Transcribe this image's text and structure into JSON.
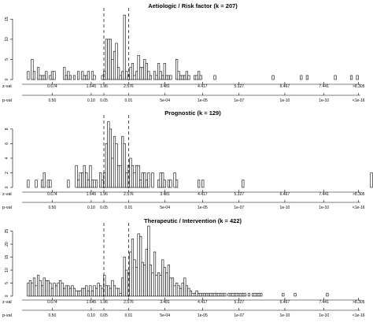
{
  "chart_data": [
    {
      "type": "bar",
      "title": "Aetiologic / Risk factor (k = 207)",
      "xlabel": "z-val",
      "secondary_axis_label": "p-val",
      "z_ticks": [
        "0.674",
        "1.645",
        "1.96",
        "2.576",
        "3.481",
        "4.417",
        "5.327",
        "6.467",
        "7.441",
        ">8.305"
      ],
      "p_ticks": [
        "0.50",
        "0.10",
        "0.05",
        "0.01",
        "5e-04",
        "1e-05",
        "1e-07",
        "1e-10",
        "1e-10",
        "<1e-16"
      ],
      "y_ticks": [
        "0",
        "5",
        "10",
        "15"
      ],
      "ylim": [
        0,
        17
      ],
      "dashed_lines_at_z": [
        1.96,
        2.576
      ],
      "bin_width": 0.05,
      "x_start": 0,
      "values": [
        0,
        2,
        0,
        5,
        2,
        0,
        3,
        1,
        1,
        1,
        2,
        0,
        1,
        2,
        2,
        0,
        0,
        0,
        0,
        3,
        1,
        2,
        1,
        0,
        1,
        0,
        2,
        0,
        2,
        1,
        1,
        2,
        0,
        2,
        1,
        0,
        0,
        0,
        1,
        2,
        10,
        10,
        10,
        5,
        7,
        9,
        3,
        1,
        2,
        16,
        2,
        1,
        3,
        4,
        1,
        2,
        6,
        3,
        3,
        5,
        4,
        2,
        1,
        0,
        2,
        1,
        4,
        2,
        1,
        4,
        1,
        1,
        1,
        0,
        0,
        5,
        2,
        1,
        1,
        1,
        2,
        1,
        0,
        0,
        1,
        1,
        2,
        1,
        0,
        0,
        0,
        0,
        0,
        0,
        1,
        0,
        0,
        0,
        0,
        0,
        0,
        0,
        0,
        0,
        0,
        0,
        0,
        0,
        0,
        0,
        0,
        0,
        0,
        0,
        0,
        0,
        0,
        0,
        0,
        0,
        0,
        0,
        0,
        1,
        0,
        0,
        0,
        0,
        0,
        0,
        0,
        0,
        0,
        0,
        0,
        0,
        0,
        1,
        0,
        0,
        1,
        0,
        0,
        0,
        0,
        0,
        0,
        0,
        0,
        0,
        0,
        0,
        0,
        0,
        1,
        0,
        0,
        0,
        0,
        0,
        0,
        0,
        1,
        0,
        0,
        1,
        0,
        0,
        0,
        0,
        0,
        0,
        0,
        0,
        0,
        0,
        0,
        0,
        0,
        0,
        15
      ]
    },
    {
      "type": "bar",
      "title": "Prognostic (k = 129)",
      "xlabel": "z-val",
      "secondary_axis_label": "p-val",
      "z_ticks": [
        "0.674",
        "1.645",
        "1.96",
        "2.576",
        "3.481",
        "4.417",
        "5.327",
        "6.467",
        "7.441",
        ">8.305"
      ],
      "p_ticks": [
        "0.50",
        "0.10",
        "0.05",
        "0.01",
        "5e-04",
        "1e-05",
        "1e-07",
        "1e-10",
        "1e-10",
        "<1e-16"
      ],
      "y_ticks": [
        "0",
        "2",
        "4",
        "6",
        "8"
      ],
      "ylim": [
        0,
        9.5
      ],
      "dashed_lines_at_z": [
        1.96,
        2.576
      ],
      "bin_width": 0.05,
      "x_start": 0,
      "values": [
        0,
        1,
        0,
        0,
        0,
        1,
        0,
        0,
        1,
        2,
        0,
        1,
        1,
        0,
        0,
        0,
        0,
        0,
        0,
        0,
        0,
        1,
        0,
        0,
        0,
        3,
        1,
        2,
        2,
        3,
        2,
        1,
        3,
        1,
        1,
        1,
        0,
        2,
        1,
        2,
        6,
        9,
        8,
        4,
        7,
        6,
        3,
        3,
        7,
        6,
        2,
        3,
        4,
        3,
        2,
        3,
        3,
        1,
        2,
        2,
        1,
        2,
        0,
        2,
        0,
        0,
        1,
        2,
        2,
        1,
        0,
        1,
        1,
        0,
        2,
        1,
        0,
        0,
        0,
        0,
        0,
        0,
        0,
        0,
        0,
        0,
        1,
        0,
        1,
        0,
        0,
        0,
        0,
        0,
        0,
        0,
        0,
        0,
        0,
        0,
        0,
        0,
        0,
        0,
        0,
        0,
        0,
        0,
        1,
        0,
        0,
        0,
        0,
        0,
        0,
        0,
        0,
        0,
        0,
        0,
        0,
        0,
        0,
        0,
        0,
        0,
        0,
        0,
        0,
        0,
        0,
        0,
        0,
        0,
        0,
        0,
        0,
        0,
        0,
        0,
        0,
        0,
        0,
        0,
        0,
        0,
        0,
        0,
        0,
        0,
        0,
        0,
        0,
        0,
        0,
        0,
        0,
        0,
        0,
        0,
        0,
        0,
        0,
        0,
        0,
        0,
        0,
        0,
        0,
        0,
        0,
        0,
        2,
        0,
        0,
        0,
        0,
        0,
        0,
        0,
        0,
        0,
        9
      ]
    },
    {
      "type": "bar",
      "title": "Therapeutic / Intervention (k = 422)",
      "xlabel": "z-val",
      "secondary_axis_label": "p-val",
      "z_ticks": [
        "0.674",
        "1.645",
        "1.96",
        "2.576",
        "3.481",
        "4.417",
        "5.327",
        "6.467",
        "7.441",
        ">8.305"
      ],
      "p_ticks": [
        "0.50",
        "0.10",
        "0.05",
        "0.01",
        "5e-04",
        "1e-05",
        "1e-07",
        "1e-10",
        "1e-10",
        "<1e-16"
      ],
      "y_ticks": [
        "0",
        "5",
        "10",
        "15",
        "20",
        "25"
      ],
      "ylim": [
        0,
        27
      ],
      "dashed_lines_at_z": [
        1.96,
        2.576
      ],
      "bin_width": 0.05,
      "x_start": 0,
      "values": [
        0,
        5,
        6,
        5,
        7,
        4,
        8,
        6,
        4,
        7,
        6,
        6,
        5,
        3,
        5,
        4,
        5,
        6,
        5,
        3,
        4,
        4,
        3,
        4,
        3,
        2,
        2,
        2,
        3,
        3,
        4,
        2,
        4,
        2,
        4,
        3,
        5,
        4,
        3,
        8,
        4,
        4,
        3,
        6,
        4,
        3,
        3,
        1,
        7,
        15,
        10,
        9,
        17,
        22,
        14,
        11,
        24,
        23,
        13,
        12,
        18,
        27,
        12,
        9,
        17,
        8,
        9,
        8,
        14,
        11,
        9,
        12,
        7,
        7,
        4,
        5,
        4,
        3,
        5,
        7,
        4,
        3,
        2,
        1,
        1,
        2,
        1,
        1,
        1,
        1,
        1,
        1,
        1,
        1,
        1,
        1,
        1,
        1,
        1,
        1,
        0,
        1,
        1,
        1,
        1,
        1,
        1,
        1,
        1,
        1,
        0,
        1,
        0,
        1,
        1,
        1,
        1,
        1,
        0,
        0,
        0,
        0,
        0,
        0,
        0,
        0,
        0,
        0,
        1,
        0,
        0,
        0,
        0,
        0,
        1,
        0,
        0,
        0,
        0,
        0,
        0,
        0,
        0,
        0,
        0,
        0,
        0,
        0,
        0,
        0,
        1,
        0,
        0,
        0,
        0,
        0,
        0,
        0,
        0,
        0,
        0,
        0,
        0,
        0,
        0,
        0,
        0,
        0,
        0,
        0,
        0,
        0,
        0,
        0,
        0,
        0,
        0,
        0,
        0,
        0,
        1,
        23
      ]
    }
  ]
}
